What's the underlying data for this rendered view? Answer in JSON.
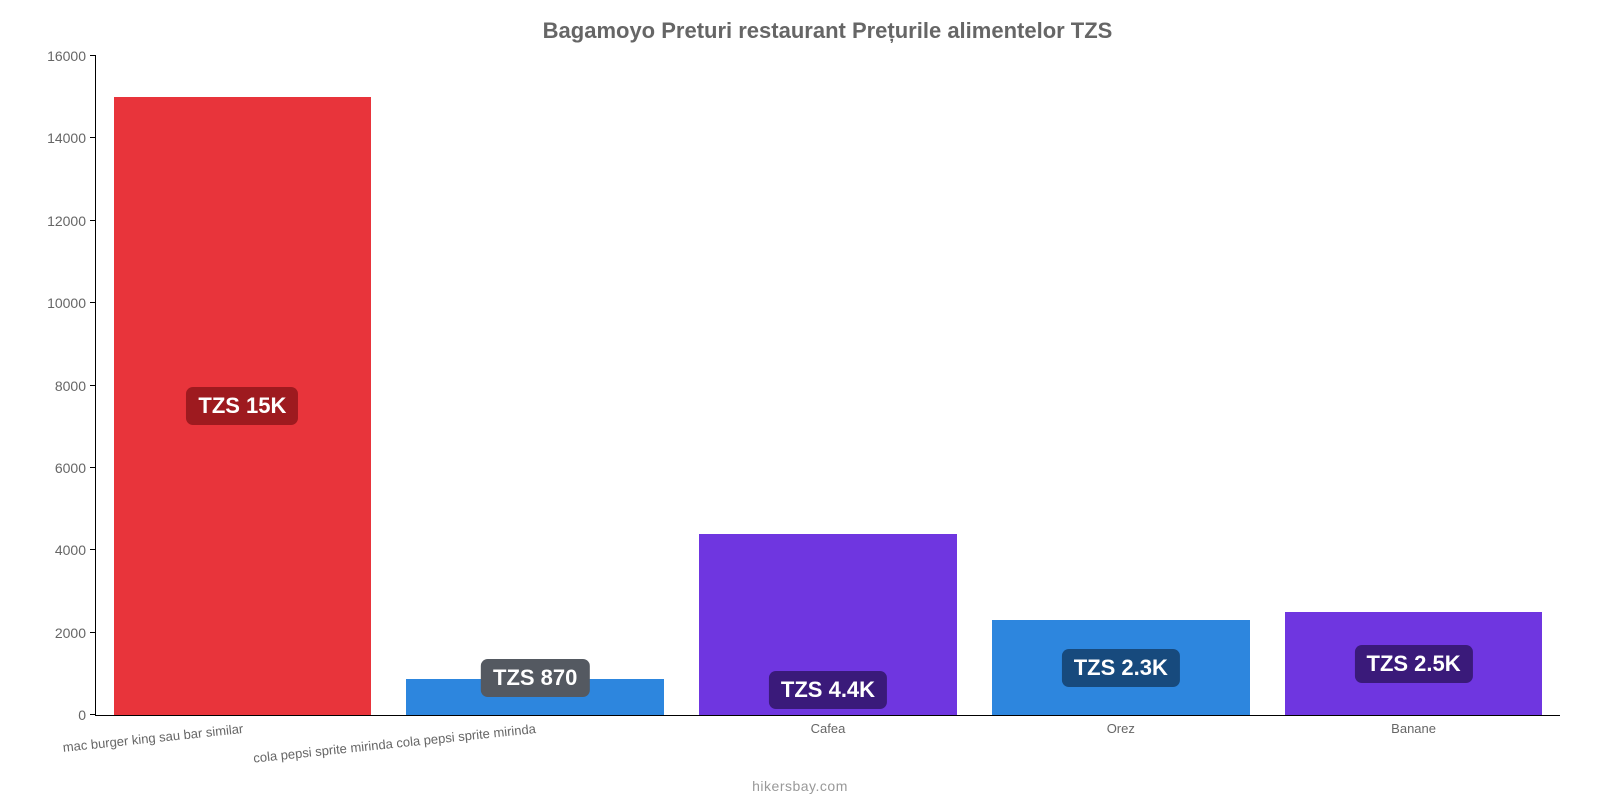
{
  "chart": {
    "type": "bar",
    "title": "Bagamoyo Preturi restaurant Prețurile alimentelor TZS",
    "title_fontsize": 22,
    "title_color": "#666666",
    "background_color": "#ffffff",
    "axis_color": "#000000",
    "tick_font_color": "#666666",
    "tick_fontsize": 14,
    "categories": [
      "mac burger king sau bar similar",
      "cola pepsi sprite mirinda cola pepsi sprite mirinda",
      "Cafea",
      "Orez",
      "Banane"
    ],
    "x_label_rotation_deg": -6,
    "x_label_flat_from_index": 2,
    "values": [
      15000,
      870,
      4400,
      2300,
      2500
    ],
    "display_labels": [
      "TZS 15K",
      "TZS 870",
      "TZS 4.4K",
      "TZS 2.3K",
      "TZS 2.5K"
    ],
    "bar_colors": [
      "#e8343b",
      "#2d86de",
      "#6f36e0",
      "#2d86de",
      "#6f36e0"
    ],
    "label_bg_colors": [
      "#9e1a1f",
      "#545961",
      "#3a1a7a",
      "#174a7d",
      "#3a1a7a"
    ],
    "label_y_mode": [
      "mid",
      "top",
      "bottom",
      "mid",
      "mid"
    ],
    "bar_width_ratio": 0.88,
    "value_label_fontsize": 22,
    "ylim": [
      0,
      16000
    ],
    "ytick_step": 2000,
    "yticks": [
      0,
      2000,
      4000,
      6000,
      8000,
      10000,
      12000,
      14000,
      16000
    ],
    "footer": "hikersbay.com",
    "footer_color": "#999999",
    "footer_fontsize": 14
  }
}
